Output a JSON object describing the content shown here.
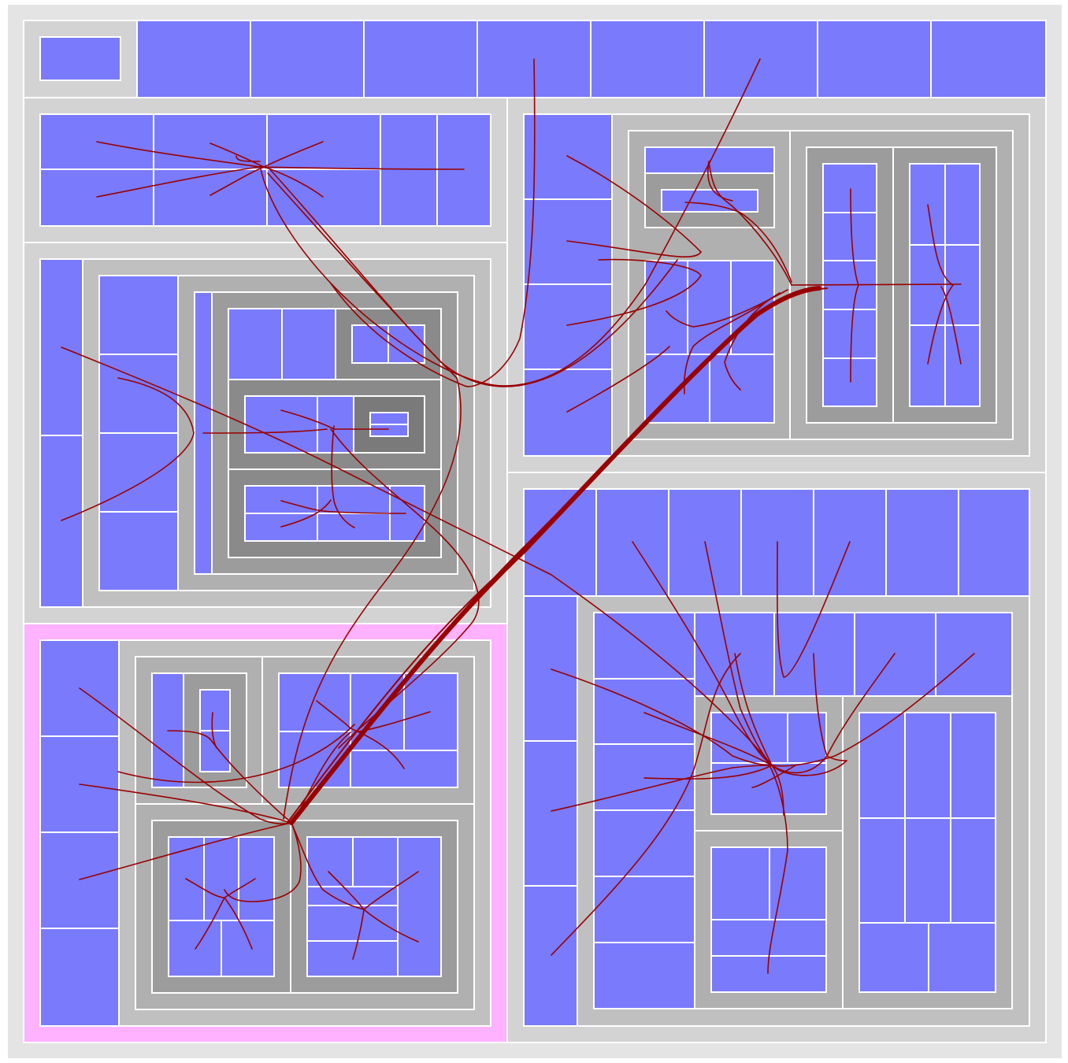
{
  "diagram": {
    "type": "nested treemap with hierarchical edge bundling",
    "colors": {
      "background": "#e4e4e4",
      "level1": "#d3d3d3",
      "level2": "#c0c0c0",
      "level3": "#b0b0b0",
      "level4": "#9c9c9c",
      "level5": "#8a8a8a",
      "level6": "#7a7a7a",
      "leaf": "#7a7afc",
      "highlight": "#ffb2ff",
      "border": "#ffffff",
      "edge": "#990000"
    }
  }
}
